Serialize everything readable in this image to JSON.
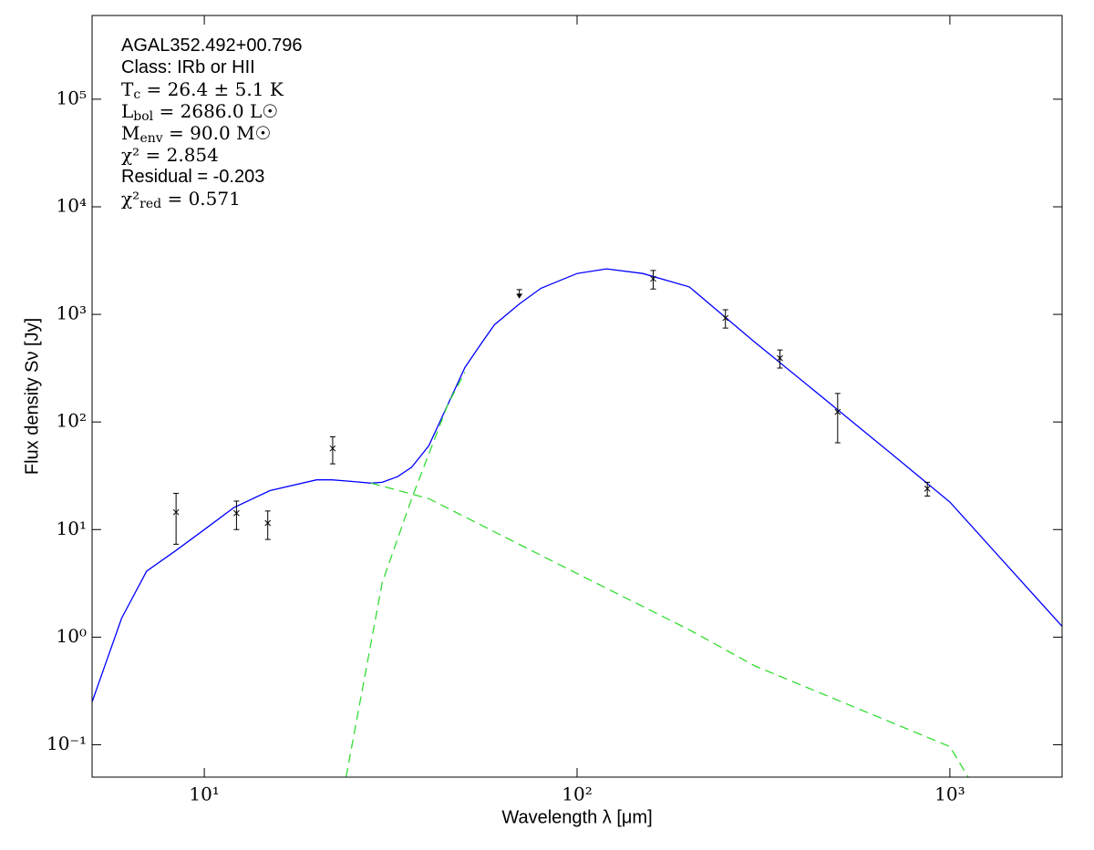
{
  "chart_data": {
    "type": "scatter",
    "x_label": "Wavelength λ [μm]",
    "y_label": "Flux density Sν [Jy]",
    "xscale": "log",
    "yscale": "log",
    "xlim": [
      5,
      2000
    ],
    "ylim": [
      0.05,
      600000
    ],
    "xticks": [
      {
        "value": 10,
        "label": "10¹"
      },
      {
        "value": 100,
        "label": "10²"
      },
      {
        "value": 1000,
        "label": "10³"
      }
    ],
    "yticks": [
      {
        "value": 0.1,
        "label": "10⁻¹"
      },
      {
        "value": 1,
        "label": "10⁰"
      },
      {
        "value": 10,
        "label": "10¹"
      },
      {
        "value": 100,
        "label": "10²"
      },
      {
        "value": 1000,
        "label": "10³"
      },
      {
        "value": 10000,
        "label": "10⁴"
      },
      {
        "value": 100000,
        "label": "10⁵"
      }
    ],
    "annotations": [
      {
        "text": "AGAL352.492+00.796",
        "math": false
      },
      {
        "text": "Class: IRb or HII",
        "math": false
      },
      {
        "text": "T",
        "sub": "c",
        "rest": " = 26.4 ± 5.1 K",
        "math": true
      },
      {
        "text": "L",
        "sub": "bol",
        "rest": " = 2686.0 L☉",
        "math": true
      },
      {
        "text": "M",
        "sub": "env",
        "rest": " = 90.0 M☉",
        "math": true
      },
      {
        "text": "χ² = 2.854",
        "math": true
      },
      {
        "text": "Residual = -0.203",
        "math": false
      },
      {
        "text": "χ²",
        "sub": "red",
        "rest": " = 0.571",
        "math": true
      }
    ],
    "series": [
      {
        "marker": "x",
        "color": "#000000",
        "x": [
          8.4,
          12.2,
          14.8,
          22.1,
          160,
          250,
          350,
          500,
          870
        ],
        "values": [
          14.5,
          14.2,
          11.5,
          56.8,
          2140,
          925,
          392,
          124,
          24
        ],
        "errors": [
          7.2,
          4.2,
          3.4,
          16,
          420,
          180,
          75,
          60,
          3.5
        ]
      },
      {
        "marker": "upper-limit",
        "color": "#000000",
        "x": [
          70
        ],
        "values": [
          1700
        ]
      }
    ],
    "lines": [
      {
        "color": "#0000ff",
        "style": "solid",
        "x": [
          5,
          6,
          7,
          8.4,
          10,
          12,
          15,
          20,
          22,
          25,
          28,
          30,
          33,
          36,
          40,
          45,
          50,
          55,
          60,
          70,
          80,
          100,
          120,
          150,
          200,
          300,
          500,
          700,
          1000,
          2000
        ],
        "values": [
          0.25,
          1.5,
          4.1,
          6.4,
          10,
          16,
          23,
          29,
          29,
          28,
          27,
          27.5,
          31,
          38,
          60,
          145,
          320,
          520,
          800,
          1250,
          1750,
          2400,
          2650,
          2400,
          1800,
          550,
          130,
          50,
          18,
          1.26
        ]
      },
      {
        "color": "#33dd33",
        "style": "dashed",
        "x": [
          28,
          40,
          100,
          200,
          300,
          1000,
          1120
        ],
        "values": [
          27,
          19.4,
          3.9,
          1.17,
          0.54,
          0.096,
          0.05
        ]
      },
      {
        "color": "#33dd33",
        "style": "dashed",
        "x": [
          24,
          30,
          36,
          45,
          50
        ],
        "values": [
          0.05,
          3.2,
          19.4,
          145,
          290
        ]
      }
    ]
  }
}
